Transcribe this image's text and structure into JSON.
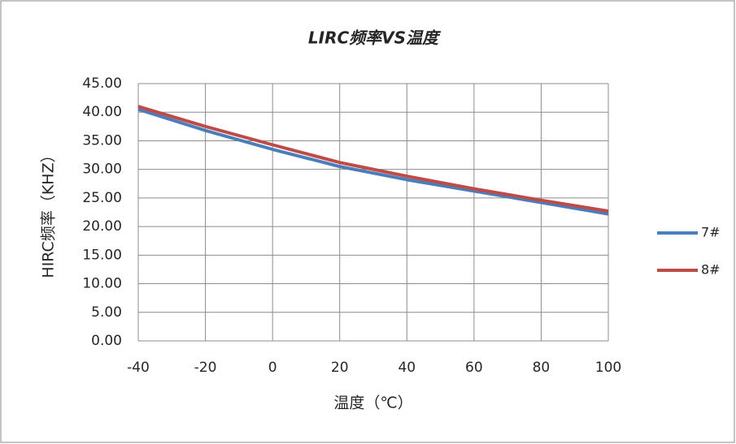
{
  "chart_data": {
    "type": "line",
    "title": "LIRC频率VS温度",
    "x_label": "温度（℃）",
    "y_label": "HIRC频率（KHZ）",
    "x": [
      -40,
      -20,
      0,
      20,
      40,
      60,
      80,
      100
    ],
    "series": [
      {
        "name": "7#",
        "color": "#4a7ebb",
        "values": [
          40.5,
          36.8,
          33.5,
          30.5,
          28.2,
          26.2,
          24.2,
          22.2
        ]
      },
      {
        "name": "8#",
        "color": "#be4b48",
        "values": [
          41.0,
          37.5,
          34.3,
          31.2,
          28.8,
          26.6,
          24.6,
          22.7
        ]
      }
    ],
    "xlim": [
      -40,
      100
    ],
    "xticks": [
      -40,
      -20,
      0,
      20,
      40,
      60,
      80,
      100
    ],
    "ylim": [
      0,
      45
    ],
    "yticks": [
      {
        "value": 0,
        "label": "0.00"
      },
      {
        "value": 5,
        "label": "5.00"
      },
      {
        "value": 10,
        "label": "10.00"
      },
      {
        "value": 15,
        "label": "15.00"
      },
      {
        "value": 20,
        "label": "20.00"
      },
      {
        "value": 25,
        "label": "25.00"
      },
      {
        "value": 30,
        "label": "30.00"
      },
      {
        "value": 35,
        "label": "35.00"
      },
      {
        "value": 40,
        "label": "40.00"
      },
      {
        "value": 45,
        "label": "45.00"
      }
    ],
    "grid": true,
    "legend": "right"
  }
}
